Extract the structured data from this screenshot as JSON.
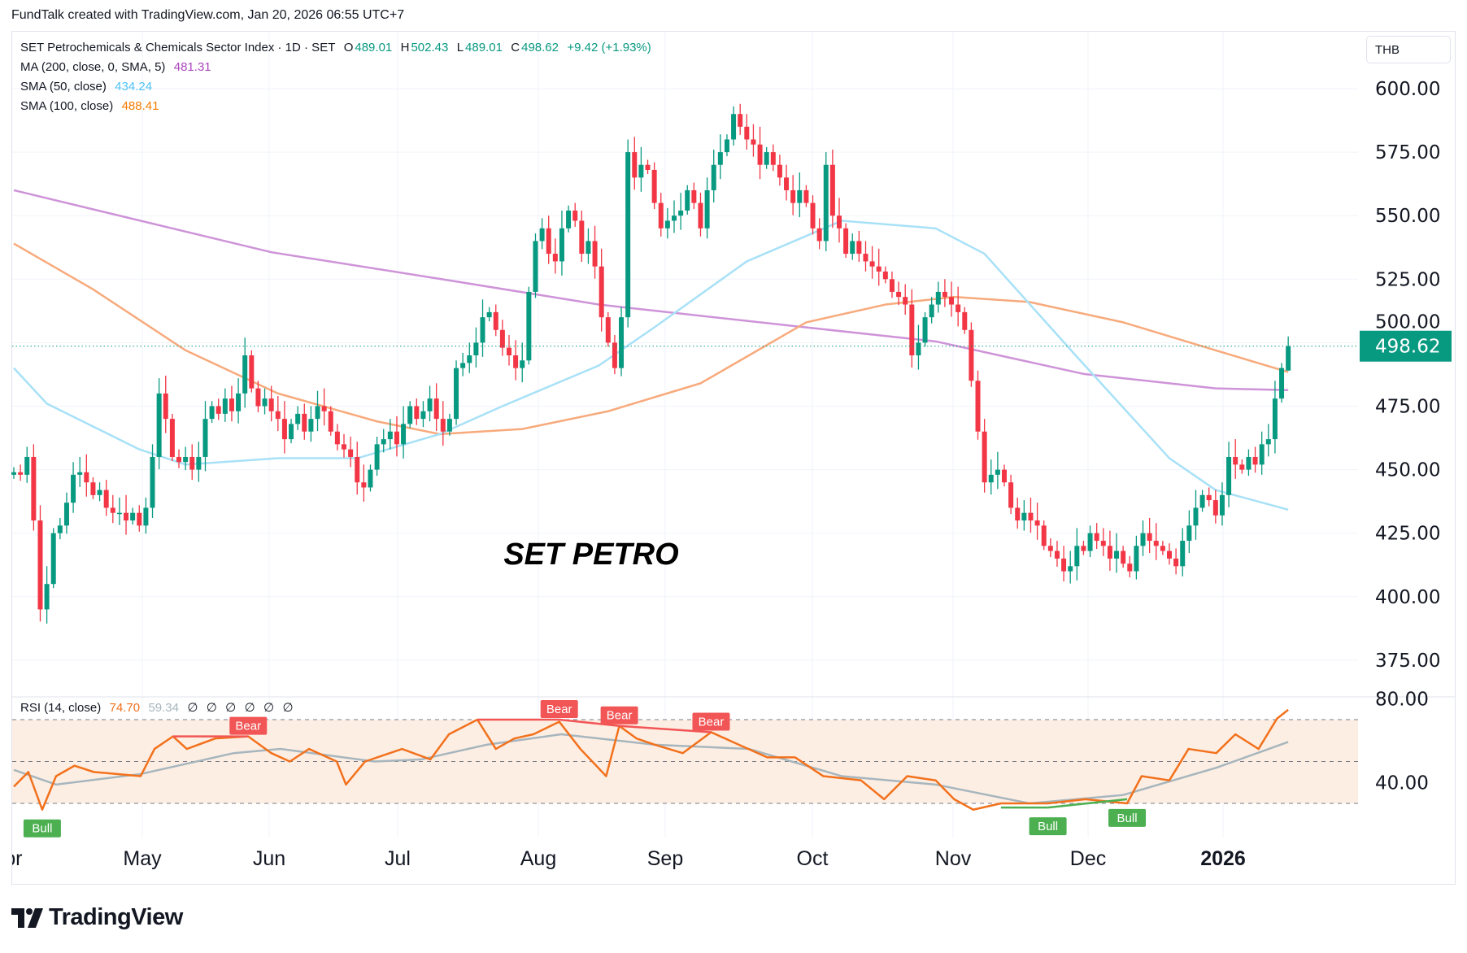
{
  "header": {
    "text": "FundTalk created with TradingView.com, Jan 20, 2026 06:55 UTC+7"
  },
  "legend": {
    "symbol": "SET Petrochemicals & Chemicals Sector Index · 1D · SET",
    "o_label": "O",
    "o": "489.01",
    "h_label": "H",
    "h": "502.43",
    "l_label": "L",
    "l": "489.01",
    "c_label": "C",
    "c": "498.62",
    "change": "+9.42 (+1.93%)",
    "ma200_label": "MA (200, close, 0, SMA, 5)",
    "ma200_value": "481.31",
    "sma50_label": "SMA (50, close)",
    "sma50_value": "434.24",
    "sma100_label": "SMA (100, close)",
    "sma100_value": "488.41"
  },
  "currency": "THB",
  "footer": {
    "brand": "TradingView"
  },
  "colors": {
    "up": "#089981",
    "down": "#f23645",
    "ma200": "#ce93d8",
    "sma50": "#a8e1f7",
    "sma100": "#f7aa7c",
    "rsi": "#f2711c",
    "rsi_ma": "#a7b6bd",
    "bull": "#4caf50",
    "bear": "#f25555"
  },
  "chart_data": [
    {
      "type": "candlestick",
      "title": "SET PETRO",
      "ylim": [
        360,
        615
      ],
      "y_ticks": [
        "600.00",
        "575.00",
        "550.00",
        "525.00",
        "500.00",
        "475.00",
        "450.00",
        "425.00",
        "400.00",
        "375.00"
      ],
      "y_tick_values": [
        600,
        575,
        550,
        525,
        500,
        475,
        450,
        425,
        400,
        375
      ],
      "last_price": "498.62",
      "last_bar": {
        "open": 489.01,
        "high": 502.43,
        "low": 489.01,
        "close": 498.62
      },
      "x_labels": [
        "Apr",
        "May",
        "Jun",
        "Jul",
        "Aug",
        "Sep",
        "Oct",
        "Nov",
        "Dec",
        "2026"
      ],
      "closes": [
        449,
        448,
        455,
        430,
        395,
        405,
        425,
        428,
        437,
        448,
        449,
        445,
        440,
        442,
        435,
        433,
        433,
        430,
        433,
        428,
        435,
        455,
        480,
        470,
        455,
        453,
        455,
        450,
        455,
        470,
        475,
        472,
        478,
        473,
        480,
        495,
        482,
        475,
        478,
        473,
        470,
        462,
        468,
        472,
        465,
        470,
        475,
        473,
        465,
        460,
        458,
        455,
        445,
        443,
        450,
        460,
        462,
        465,
        460,
        468,
        475,
        470,
        473,
        478,
        470,
        465,
        470,
        490,
        492,
        495,
        500,
        510,
        512,
        505,
        498,
        495,
        490,
        493,
        520,
        540,
        545,
        535,
        532,
        545,
        552,
        548,
        535,
        540,
        530,
        510,
        500,
        490,
        510,
        575,
        565,
        570,
        568,
        555,
        545,
        548,
        550,
        552,
        560,
        555,
        545,
        560,
        570,
        575,
        580,
        590,
        585,
        580,
        578,
        570,
        575,
        570,
        565,
        560,
        555,
        560,
        555,
        545,
        540,
        570,
        550,
        545,
        535,
        540,
        535,
        532,
        530,
        528,
        525,
        520,
        518,
        515,
        495,
        500,
        510,
        515,
        520,
        518,
        515,
        512,
        505,
        485,
        465,
        445,
        448,
        450,
        445,
        435,
        430,
        433,
        430,
        428,
        420,
        418,
        415,
        410,
        412,
        420,
        418,
        425,
        422,
        420,
        415,
        418,
        413,
        410,
        420,
        425,
        422,
        420,
        418,
        415,
        412,
        422,
        428,
        435,
        440,
        438,
        432,
        440,
        455,
        452,
        450,
        455,
        452,
        460,
        462,
        478,
        490,
        498.62
      ],
      "series": [
        {
          "name": "MA (200, close, 0, SMA, 5)",
          "points": [
            [
              0,
              560
            ],
            [
              39,
              535.6
            ],
            [
              66,
              524.5
            ],
            [
              88.6,
              515
            ],
            [
              120,
              506
            ],
            [
              139.6,
              500.5
            ],
            [
              162,
              487.7
            ],
            [
              182,
              482
            ],
            [
              193,
              481.31
            ]
          ]
        },
        {
          "name": "SMA (100, close)",
          "points": [
            [
              0,
              539
            ],
            [
              12,
              521
            ],
            [
              26,
              497
            ],
            [
              40,
              480
            ],
            [
              55,
              469
            ],
            [
              64.5,
              464
            ],
            [
              77,
              466
            ],
            [
              90,
              473
            ],
            [
              104,
              484
            ],
            [
              120,
              508
            ],
            [
              132,
              515
            ],
            [
              142.4,
              518
            ],
            [
              153.8,
              516
            ],
            [
              168,
              508
            ],
            [
              182,
              497
            ],
            [
              193,
              488.41
            ]
          ]
        },
        {
          "name": "SMA (50, close)",
          "points": [
            [
              0,
              490
            ],
            [
              5,
              476
            ],
            [
              19,
              458
            ],
            [
              26,
              452
            ],
            [
              40,
              454.5
            ],
            [
              52,
              454.5
            ],
            [
              64.5,
              464
            ],
            [
              74,
              475
            ],
            [
              88.6,
              491
            ],
            [
              97,
              506
            ],
            [
              111,
              532
            ],
            [
              125.4,
              548
            ],
            [
              139.6,
              545
            ],
            [
              147,
              535
            ],
            [
              160.8,
              495
            ],
            [
              175,
              454.5
            ],
            [
              182,
              442
            ],
            [
              193,
              434.24
            ]
          ]
        }
      ]
    },
    {
      "type": "line",
      "title": "RSI (14, close)",
      "value": "74.70",
      "ma_value": "59.34",
      "extra_values": [
        "∅",
        "∅",
        "∅",
        "∅",
        "∅",
        "∅"
      ],
      "ylim": [
        20,
        82
      ],
      "y_ticks": [
        "80.00",
        "40.00"
      ],
      "y_tick_values": [
        80,
        40
      ],
      "bands": [
        70,
        50,
        30
      ],
      "rsi": [
        [
          0,
          38
        ],
        [
          2.2,
          45
        ],
        [
          4.3,
          27
        ],
        [
          6.4,
          43
        ],
        [
          9.2,
          48
        ],
        [
          12.1,
          45
        ],
        [
          19.2,
          43
        ],
        [
          21.3,
          56
        ],
        [
          24.1,
          62
        ],
        [
          26.2,
          56
        ],
        [
          30.5,
          61
        ],
        [
          35.5,
          62
        ],
        [
          39,
          54
        ],
        [
          41.8,
          50
        ],
        [
          44.7,
          56
        ],
        [
          48.9,
          50
        ],
        [
          50.3,
          39
        ],
        [
          53.2,
          50
        ],
        [
          58.8,
          56
        ],
        [
          63.1,
          51
        ],
        [
          65.9,
          63
        ],
        [
          70.2,
          70
        ],
        [
          73,
          56
        ],
        [
          75.8,
          61
        ],
        [
          78.7,
          63
        ],
        [
          82.6,
          69
        ],
        [
          85.8,
          56
        ],
        [
          89.7,
          43
        ],
        [
          91.7,
          67
        ],
        [
          94.3,
          61
        ],
        [
          97.1,
          58
        ],
        [
          101.3,
          54
        ],
        [
          105.6,
          64
        ],
        [
          109.8,
          58
        ],
        [
          114.1,
          52
        ],
        [
          118.3,
          52
        ],
        [
          122.6,
          43
        ],
        [
          128.3,
          41
        ],
        [
          131.8,
          32
        ],
        [
          135.3,
          43
        ],
        [
          139.6,
          41
        ],
        [
          142.4,
          32
        ],
        [
          145.3,
          27
        ],
        [
          149.5,
          30
        ],
        [
          156.6,
          30
        ],
        [
          162.3,
          32
        ],
        [
          168.6,
          30
        ],
        [
          170.8,
          43
        ],
        [
          175,
          41
        ],
        [
          177.9,
          56
        ],
        [
          182.1,
          54
        ],
        [
          185,
          63
        ],
        [
          188.5,
          56
        ],
        [
          191.3,
          70.5
        ],
        [
          193,
          74.7
        ]
      ],
      "rsi_ma": [
        [
          0,
          46
        ],
        [
          6.4,
          39
        ],
        [
          19.2,
          44
        ],
        [
          33.3,
          54
        ],
        [
          40.4,
          56
        ],
        [
          54.6,
          50
        ],
        [
          61.7,
          51
        ],
        [
          71.6,
          58
        ],
        [
          82.9,
          63
        ],
        [
          97.1,
          58
        ],
        [
          111.3,
          56
        ],
        [
          125.4,
          43
        ],
        [
          139.6,
          39
        ],
        [
          153.8,
          30
        ],
        [
          168,
          34
        ],
        [
          182.1,
          47
        ],
        [
          193,
          59.34
        ]
      ],
      "divergences": [
        {
          "label": "Bull",
          "kind": "bull",
          "from": [
            4.3,
            27
          ],
          "to": [
            4.3,
            27
          ]
        },
        {
          "label": "Bear",
          "kind": "bear",
          "from": [
            24.1,
            62
          ],
          "to": [
            35.5,
            62
          ]
        },
        {
          "label": "Bear",
          "kind": "bear",
          "from": [
            70.2,
            70
          ],
          "to": [
            82.6,
            70
          ]
        },
        {
          "label": "Bear",
          "kind": "bear",
          "from": [
            82.6,
            70
          ],
          "to": [
            91.7,
            67
          ]
        },
        {
          "label": "Bear",
          "kind": "bear",
          "from": [
            91.7,
            67
          ],
          "to": [
            105.6,
            64
          ]
        },
        {
          "label": "Bull",
          "kind": "bull",
          "from": [
            149.5,
            28
          ],
          "to": [
            156.6,
            28
          ]
        },
        {
          "label": "Bull",
          "kind": "bull",
          "from": [
            156.6,
            28
          ],
          "to": [
            168.6,
            32
          ]
        }
      ]
    }
  ]
}
